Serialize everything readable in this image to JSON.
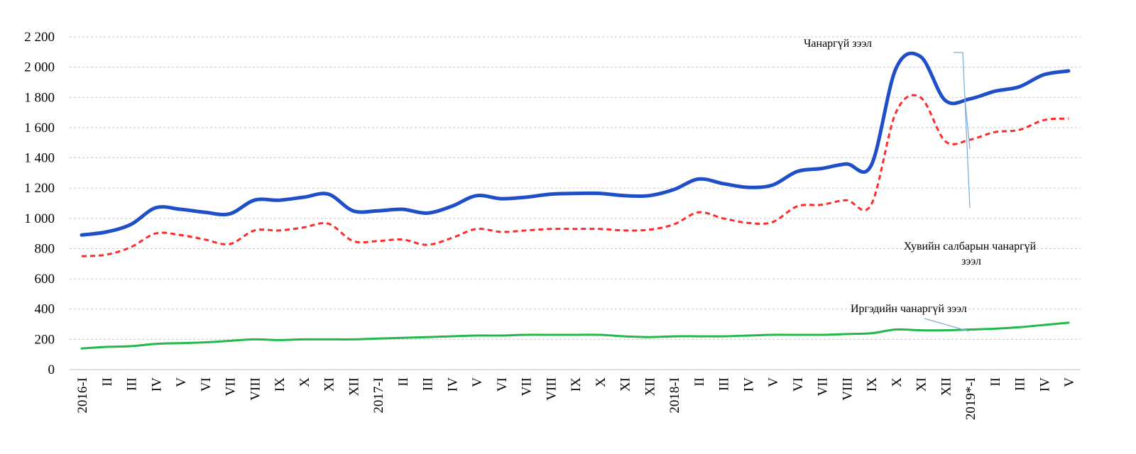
{
  "chart_data": {
    "type": "line",
    "categories": [
      "2016-I",
      "II",
      "III",
      "IV",
      "V",
      "VI",
      "VII",
      "VIII",
      "IX",
      "X",
      "XI",
      "XII",
      "2017-I",
      "II",
      "III",
      "IV",
      "V",
      "VI",
      "VII",
      "VIII",
      "IX",
      "X",
      "XI",
      "XII",
      "2018-I",
      "II",
      "III",
      "IV",
      "V",
      "VI",
      "VII",
      "VIII",
      "IX",
      "X",
      "XI",
      "XII",
      "2019*-I",
      "II",
      "III",
      "IV",
      "V"
    ],
    "yticks": [
      "0",
      "200",
      "400",
      "600",
      "800",
      "1 000",
      "1 200",
      "1 400",
      "1 600",
      "1 800",
      "2 000",
      "2 200"
    ],
    "ylim": [
      0,
      2200
    ],
    "grid": true,
    "series": [
      {
        "name": "Чанаргүй зээл",
        "color": "#1f4fc8",
        "style": "solid",
        "values": [
          890,
          910,
          960,
          1070,
          1060,
          1040,
          1030,
          1120,
          1120,
          1140,
          1160,
          1050,
          1050,
          1060,
          1035,
          1080,
          1150,
          1130,
          1140,
          1160,
          1165,
          1165,
          1150,
          1150,
          1190,
          1260,
          1230,
          1205,
          1220,
          1310,
          1330,
          1360,
          1350,
          1990,
          2070,
          1780,
          1790,
          1840,
          1870,
          1950,
          1975
        ]
      },
      {
        "name": "Хувийн салбарын чанаргүй зээл",
        "color": "#ff2a2a",
        "style": "dashed",
        "values": [
          750,
          760,
          810,
          900,
          890,
          860,
          830,
          920,
          920,
          940,
          965,
          850,
          850,
          860,
          825,
          870,
          930,
          910,
          920,
          930,
          930,
          930,
          920,
          925,
          960,
          1040,
          1000,
          970,
          975,
          1080,
          1090,
          1120,
          1090,
          1700,
          1800,
          1510,
          1520,
          1570,
          1585,
          1650,
          1660
        ]
      },
      {
        "name": "Иргэдийн чанаргүй зээл",
        "color": "#22b84a",
        "style": "solid",
        "values": [
          140,
          150,
          155,
          170,
          175,
          180,
          190,
          200,
          195,
          200,
          200,
          200,
          205,
          210,
          215,
          220,
          225,
          225,
          230,
          230,
          230,
          230,
          220,
          215,
          220,
          220,
          220,
          225,
          230,
          230,
          230,
          235,
          240,
          265,
          260,
          260,
          265,
          270,
          280,
          295,
          310
        ]
      }
    ]
  }
}
